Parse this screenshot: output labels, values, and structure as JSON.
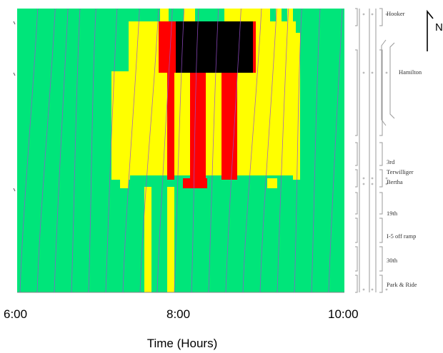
{
  "chart_data": {
    "type": "heatmap",
    "title": "",
    "xlabel": "Time (Hours)",
    "ylabel": "",
    "x_ticks": [
      "6:00",
      "8:00",
      "10:00"
    ],
    "xlim_hours": [
      6,
      10
    ],
    "north_label": "N",
    "locations_top_to_bottom": [
      "Hooker",
      "Hamilton",
      "3rd",
      "Terwilliger",
      "Bertha",
      "19th",
      "I-5 off ramp",
      "30th",
      "Park & Ride"
    ],
    "color_legend": {
      "free_flow": "#00e57a",
      "slowing": "#ffff00",
      "congested": "#ff0000",
      "stopped": "#000000",
      "vehicle_trajectories": "#9a4fd0"
    }
  }
}
